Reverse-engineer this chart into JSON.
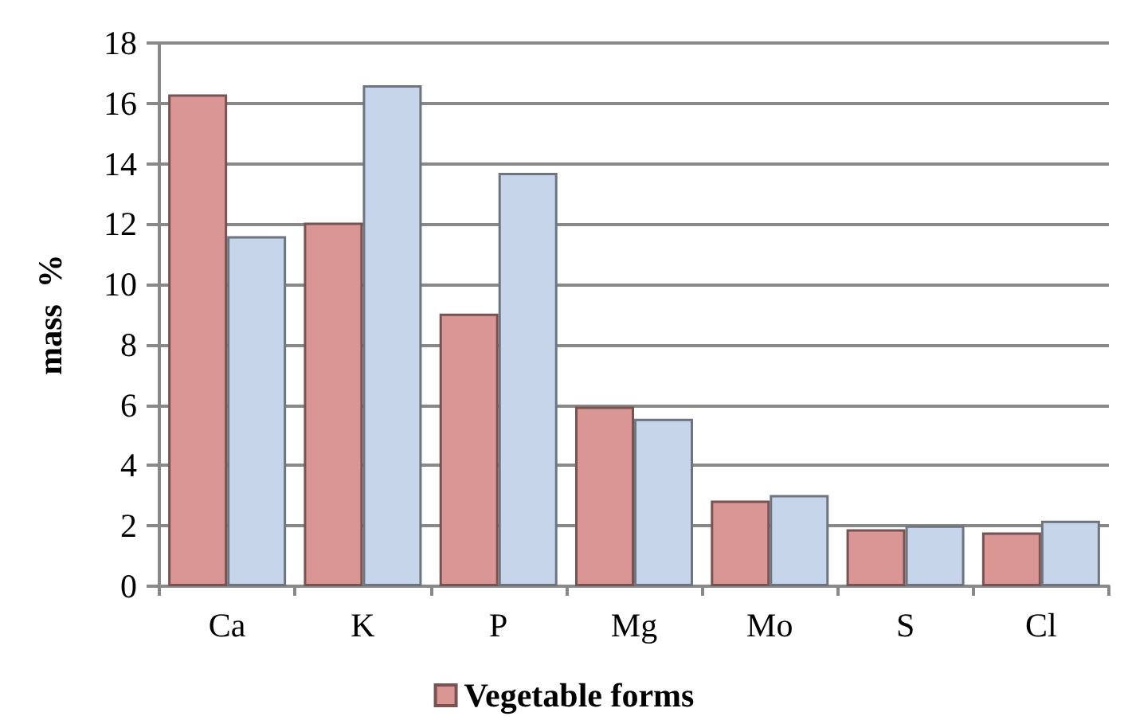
{
  "chart_data": {
    "type": "bar",
    "ylabel": "mass  %",
    "categories": [
      "Ca",
      "K",
      "P",
      "Mg",
      "Mo",
      "S",
      "Cl"
    ],
    "series": [
      {
        "name": "Vegetable forms",
        "color": "#d99694",
        "values": [
          16.3,
          12.05,
          9.03,
          5.95,
          2.84,
          1.89,
          1.78
        ]
      },
      {
        "color": "#c6d5ea",
        "values": [
          11.6,
          16.6,
          13.7,
          5.55,
          3.02,
          2.01,
          2.17
        ]
      }
    ],
    "ylim": [
      0,
      18
    ],
    "yticks": [
      0,
      2,
      4,
      6,
      8,
      10,
      12,
      14,
      16,
      18
    ],
    "grid": "y",
    "legend": "bottom"
  }
}
